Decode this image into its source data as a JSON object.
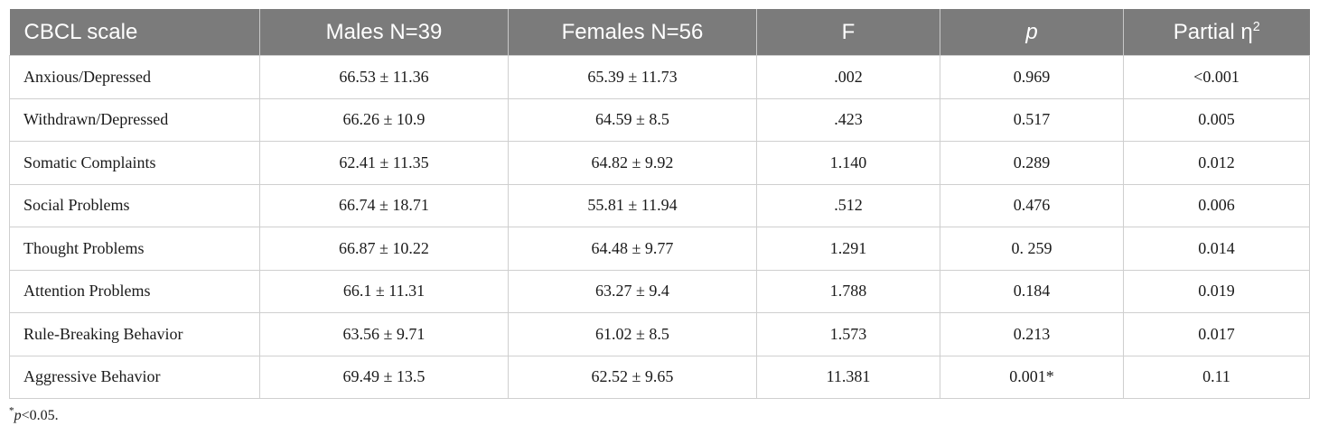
{
  "table": {
    "headers": [
      {
        "text": "CBCL scale"
      },
      {
        "text": "Males N=39"
      },
      {
        "text": "Females N=56"
      },
      {
        "text": "F"
      },
      {
        "text": "p"
      },
      {
        "text": "Partial η",
        "sup": "2"
      }
    ],
    "rows": [
      {
        "scale": "Anxious/Depressed",
        "males": "66.53 ± 11.36",
        "females": "65.39 ± 11.73",
        "f": ".002",
        "p": "0.969",
        "eta": "<0.001"
      },
      {
        "scale": "Withdrawn/Depressed",
        "males": "66.26 ± 10.9",
        "females": "64.59 ± 8.5",
        "f": ".423",
        "p": "0.517",
        "eta": "0.005"
      },
      {
        "scale": "Somatic Complaints",
        "males": "62.41 ± 11.35",
        "females": "64.82 ± 9.92",
        "f": "1.140",
        "p": "0.289",
        "eta": "0.012"
      },
      {
        "scale": "Social Problems",
        "males": "66.74 ± 18.71",
        "females": "55.81 ± 11.94",
        "f": ".512",
        "p": "0.476",
        "eta": "0.006"
      },
      {
        "scale": "Thought Problems",
        "males": "66.87 ± 10.22",
        "females": "64.48 ± 9.77",
        "f": "1.291",
        "p": "0. 259",
        "eta": "0.014"
      },
      {
        "scale": "Attention Problems",
        "males": "66.1 ± 11.31",
        "females": "63.27 ± 9.4",
        "f": "1.788",
        "p": "0.184",
        "eta": "0.019"
      },
      {
        "scale": "Rule-Breaking Behavior",
        "males": "63.56 ± 9.71",
        "females": "61.02 ± 8.5",
        "f": "1.573",
        "p": "0.213",
        "eta": "0.017"
      },
      {
        "scale": "Aggressive Behavior",
        "males": "69.49 ± 13.5",
        "females": "62.52 ± 9.65",
        "f": "11.381",
        "p": "0.001*",
        "eta": "0.11"
      }
    ]
  },
  "footnote": {
    "star": "*",
    "p_symbol": "p",
    "text": "<0.05."
  }
}
